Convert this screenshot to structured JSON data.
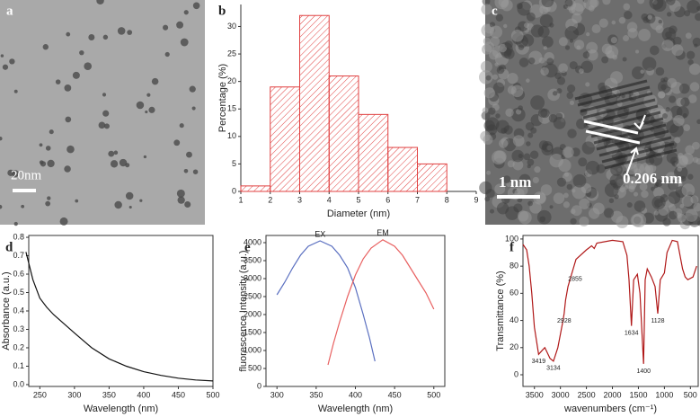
{
  "chart_data": [
    {
      "type": "image",
      "label": "a",
      "scale_bar": "20nm"
    },
    {
      "type": "histogram",
      "label": "b",
      "xlabel": "Diameter (nm)",
      "ylabel": "Percentage (%)",
      "bins": [
        1,
        2,
        3,
        4,
        5,
        6,
        7,
        8
      ],
      "values": [
        1,
        19,
        32,
        21,
        14,
        8,
        5
      ],
      "color": "#e04040",
      "xlim": [
        1,
        9
      ],
      "xticks": [
        1,
        2,
        3,
        4,
        5,
        6,
        7,
        8,
        9
      ],
      "ylim": [
        0,
        34
      ],
      "yticks": [
        0,
        5,
        10,
        15,
        20,
        25,
        30
      ]
    },
    {
      "type": "image",
      "label": "c",
      "scale_bar": "1 nm",
      "annotation": "0.206 nm"
    },
    {
      "type": "line",
      "label": "d",
      "xlabel": "Wavelength (nm)",
      "ylabel": "Absorbance (a.u.)",
      "series": [
        {
          "color": "#111111",
          "x": [
            230,
            240,
            250,
            260,
            270,
            285,
            300,
            325,
            350,
            375,
            400,
            425,
            450,
            475,
            500
          ],
          "values": [
            0.72,
            0.57,
            0.47,
            0.42,
            0.38,
            0.33,
            0.28,
            0.2,
            0.14,
            0.1,
            0.07,
            0.05,
            0.035,
            0.025,
            0.02
          ]
        }
      ],
      "xlim": [
        234,
        500
      ],
      "xticks": [
        250,
        300,
        350,
        400,
        450,
        500
      ],
      "ylim": [
        -0.01,
        0.81
      ],
      "yticks": [
        {
          "value": 0,
          "label": "0.0"
        },
        0.1,
        0.2,
        0.3,
        0.4,
        0.5,
        0.6,
        0.7,
        0.8
      ]
    },
    {
      "type": "line",
      "label": "e",
      "xlabel": "Wavelength (nm)",
      "ylabel": "fluorescence Intensity (a.u.)",
      "series": [
        {
          "name": "EX",
          "color": "#5a6fc0",
          "x": [
            300,
            310,
            320,
            330,
            340,
            355,
            370,
            380,
            390,
            400,
            410,
            418,
            425
          ],
          "values": [
            2550,
            2900,
            3300,
            3650,
            3900,
            4050,
            3900,
            3650,
            3300,
            2750,
            2000,
            1350,
            700
          ]
        },
        {
          "name": "EM",
          "color": "#e86060",
          "x": [
            365,
            372,
            380,
            390,
            400,
            410,
            420,
            435,
            450,
            460,
            470,
            480,
            490,
            500
          ],
          "values": [
            600,
            1200,
            1800,
            2500,
            3100,
            3550,
            3850,
            4080,
            3900,
            3650,
            3300,
            2950,
            2600,
            2150
          ]
        }
      ],
      "xlim": [
        286,
        514
      ],
      "xticks": [
        300,
        350,
        400,
        450,
        500
      ],
      "ylim": [
        0,
        4200
      ],
      "yticks": [
        0,
        500,
        1000,
        1500,
        2000,
        2500,
        3000,
        3500,
        4000
      ]
    },
    {
      "type": "line",
      "label": "f",
      "xlabel": "wavenumbers (cm⁻¹)",
      "ylabel": "Transmittance (%)",
      "series": [
        {
          "color": "#b01818",
          "x": [
            3720,
            3650,
            3600,
            3550,
            3500,
            3419,
            3350,
            3300,
            3250,
            3200,
            3134,
            3050,
            2960,
            2928,
            2900,
            2855,
            2800,
            2700,
            2500,
            2400,
            2350,
            2300,
            2000,
            1800,
            1720,
            1680,
            1634,
            1590,
            1520,
            1470,
            1430,
            1400,
            1370,
            1330,
            1250,
            1180,
            1128,
            1080,
            1000,
            950,
            850,
            750,
            650,
            600,
            550,
            450,
            380
          ],
          "values": [
            96,
            92,
            80,
            60,
            35,
            15,
            18,
            20,
            16,
            12,
            10,
            20,
            38,
            45,
            55,
            65,
            72,
            85,
            92,
            95,
            93,
            97,
            99,
            98,
            88,
            70,
            36,
            70,
            74,
            60,
            30,
            8,
            70,
            78,
            72,
            65,
            45,
            70,
            75,
            90,
            99,
            98,
            78,
            72,
            70,
            72,
            80
          ]
        }
      ],
      "peaks": [
        3419,
        3134,
        2928,
        2855,
        1634,
        1400,
        1128
      ],
      "xlim": [
        3720,
        350
      ],
      "xticks": [
        3500,
        3000,
        2500,
        2000,
        1500,
        1000,
        500
      ],
      "ylim": [
        -8.6,
        102.6
      ],
      "yticks": [
        0,
        20,
        40,
        60,
        80,
        100
      ]
    }
  ]
}
